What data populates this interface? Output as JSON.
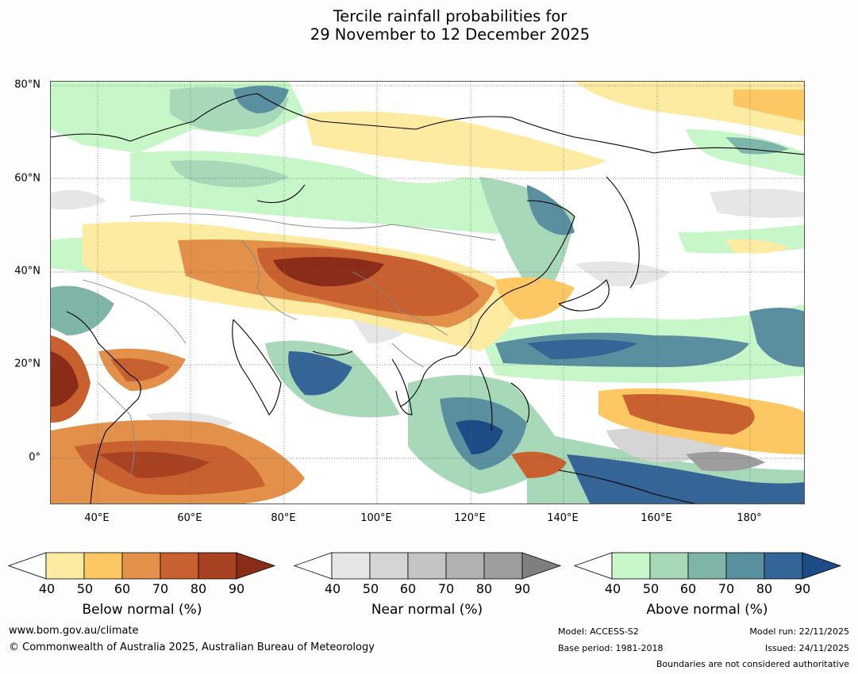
{
  "title": {
    "line1": "Tercile rainfall probabilities for",
    "line2": "29 November to 12 December 2025"
  },
  "map": {
    "lat_labels": [
      "80°N",
      "60°N",
      "40°N",
      "20°N",
      "0°"
    ],
    "lon_labels": [
      "40°E",
      "60°E",
      "80°E",
      "100°E",
      "120°E",
      "140°E",
      "160°E",
      "180°"
    ]
  },
  "colorbars": [
    {
      "label": "Below normal (%)",
      "ticks": [
        "40",
        "50",
        "60",
        "70",
        "80",
        "90"
      ],
      "colors": [
        "#ffffff",
        "#feeba2",
        "#fdc864",
        "#e3914a",
        "#c8602f",
        "#a84223",
        "#8a2c18"
      ]
    },
    {
      "label": "Near normal (%)",
      "ticks": [
        "40",
        "50",
        "60",
        "70",
        "80",
        "90"
      ],
      "colors": [
        "#ffffff",
        "#e6e6e6",
        "#d5d5d5",
        "#c4c4c4",
        "#b1b1b1",
        "#9d9d9d",
        "#7f7f7f"
      ]
    },
    {
      "label": "Above normal (%)",
      "ticks": [
        "40",
        "50",
        "60",
        "70",
        "80",
        "90"
      ],
      "colors": [
        "#ffffff",
        "#c7f6c9",
        "#a7d8b8",
        "#7fb5a8",
        "#5a8fa0",
        "#346596",
        "#1d4b85"
      ]
    }
  ],
  "footer": {
    "website": "www.bom.gov.au/climate",
    "copyright": "© Commonwealth of Australia 2025, Australian Bureau of Meteorology",
    "model": "Model: ACCESS-S2",
    "base_period": "Base period: 1981-2018",
    "model_run": "Model run: 22/11/2025",
    "issued": "Issued: 24/11/2025",
    "boundaries_note": "Boundaries are not considered authoritative"
  }
}
